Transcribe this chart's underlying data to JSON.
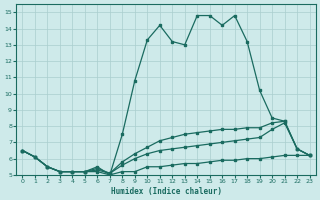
{
  "title": "",
  "xlabel": "Humidex (Indice chaleur)",
  "bg_color": "#ceeaea",
  "grid_color": "#aacece",
  "line_color": "#1a6b60",
  "xlim": [
    -0.5,
    23.5
  ],
  "ylim": [
    5,
    15.5
  ],
  "xticks": [
    0,
    1,
    2,
    3,
    4,
    5,
    6,
    7,
    8,
    9,
    10,
    11,
    12,
    13,
    14,
    15,
    16,
    17,
    18,
    19,
    20,
    21,
    22,
    23
  ],
  "yticks": [
    5,
    6,
    7,
    8,
    9,
    10,
    11,
    12,
    13,
    14,
    15
  ],
  "line1_x": [
    0,
    1,
    2,
    3,
    4,
    5,
    6,
    7,
    8,
    9,
    10,
    11,
    12,
    13,
    14,
    15,
    16,
    17,
    18,
    19,
    20,
    21,
    22,
    23
  ],
  "line1_y": [
    6.5,
    6.1,
    5.5,
    5.2,
    5.2,
    5.2,
    5.2,
    5.0,
    5.2,
    5.2,
    5.5,
    5.5,
    5.6,
    5.7,
    5.7,
    5.8,
    5.9,
    5.9,
    6.0,
    6.0,
    6.1,
    6.2,
    6.2,
    6.2
  ],
  "line2_x": [
    0,
    1,
    2,
    3,
    4,
    5,
    6,
    7,
    8,
    9,
    10,
    11,
    12,
    13,
    14,
    15,
    16,
    17,
    18,
    19,
    20,
    21,
    22,
    23
  ],
  "line2_y": [
    6.5,
    6.1,
    5.5,
    5.2,
    5.2,
    5.2,
    5.3,
    5.1,
    5.6,
    6.0,
    6.3,
    6.5,
    6.6,
    6.7,
    6.8,
    6.9,
    7.0,
    7.1,
    7.2,
    7.3,
    7.8,
    8.2,
    6.6,
    6.2
  ],
  "line3_x": [
    0,
    1,
    2,
    3,
    4,
    5,
    6,
    7,
    8,
    9,
    10,
    11,
    12,
    13,
    14,
    15,
    16,
    17,
    18,
    19,
    20,
    21,
    22,
    23
  ],
  "line3_y": [
    6.5,
    6.1,
    5.5,
    5.2,
    5.2,
    5.2,
    5.4,
    5.1,
    5.8,
    6.3,
    6.7,
    7.1,
    7.3,
    7.5,
    7.6,
    7.7,
    7.8,
    7.8,
    7.9,
    7.9,
    8.2,
    8.3,
    6.6,
    6.2
  ],
  "line4_x": [
    0,
    1,
    2,
    3,
    4,
    5,
    6,
    7,
    8,
    9,
    10,
    11,
    12,
    13,
    14,
    15,
    16,
    17,
    18,
    19,
    20,
    21,
    22,
    23
  ],
  "line4_y": [
    6.5,
    6.1,
    5.5,
    5.2,
    5.2,
    5.2,
    5.5,
    5.0,
    7.5,
    10.8,
    13.3,
    14.2,
    13.2,
    13.0,
    14.8,
    14.8,
    14.2,
    14.8,
    13.2,
    10.2,
    8.5,
    8.3,
    6.6,
    6.2
  ]
}
